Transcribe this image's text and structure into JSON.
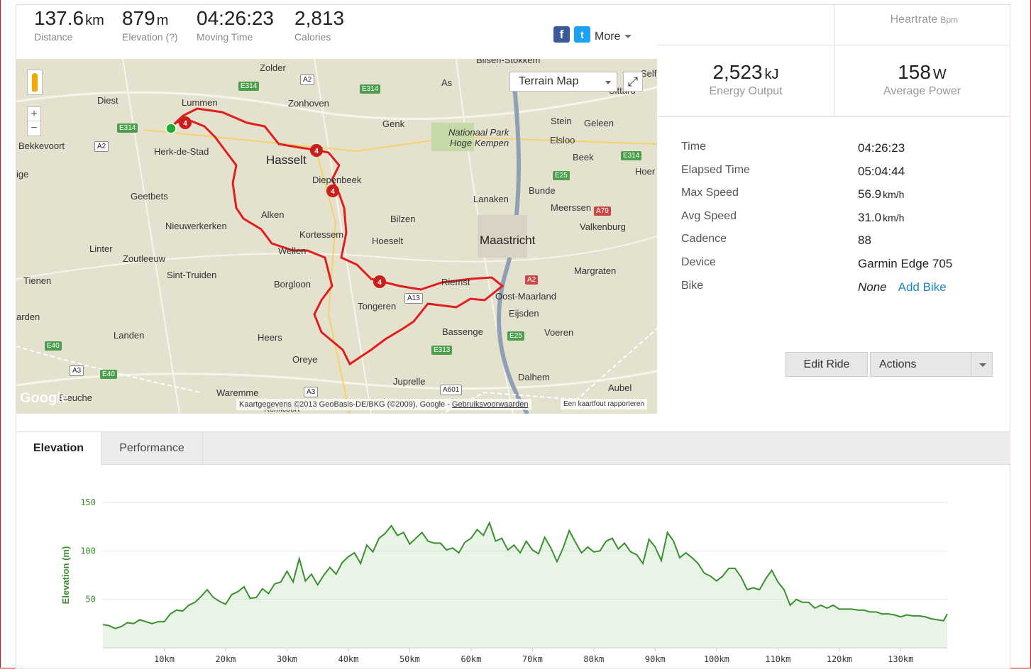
{
  "stats": [
    {
      "value": "137.6",
      "unit": "km",
      "label": "Distance"
    },
    {
      "value": "879",
      "unit": "m",
      "label": "Elevation (?)"
    },
    {
      "value": "04:26:23",
      "unit": "",
      "label": "Moving Time"
    },
    {
      "value": "2,813",
      "unit": "",
      "label": "Calories"
    }
  ],
  "social": {
    "fb_icon": "facebook-icon",
    "tw_icon": "twitter-icon",
    "more_label": "More"
  },
  "map": {
    "type_label": "Terrain Map",
    "attribution": "Kaartgegevens ©2013 GeoBasis-DE/BKG (©2009), Google - ",
    "terms_link": "Gebruiksvoorwaarden",
    "report_link": "Een kaartfout rapporteren",
    "logo": "Google",
    "places": [
      {
        "name": "Zolder"
      },
      {
        "name": "Diest"
      },
      {
        "name": "Lummen"
      },
      {
        "name": "Zonhoven"
      },
      {
        "name": "As"
      },
      {
        "name": "Genk"
      },
      {
        "name": "Bekkevoort"
      },
      {
        "name": "Herk-de-Stad"
      },
      {
        "name": "Hasselt",
        "big": true
      },
      {
        "name": "Nationaal Park"
      },
      {
        "name": "Hoge Kempen"
      },
      {
        "name": "Stein"
      },
      {
        "name": "Geleen"
      },
      {
        "name": "Elsloo"
      },
      {
        "name": "Beek"
      },
      {
        "name": "Diepenbeek"
      },
      {
        "name": "Geetbets"
      },
      {
        "name": "Lanaken"
      },
      {
        "name": "Bunde"
      },
      {
        "name": "Meerssen"
      },
      {
        "name": "Alken"
      },
      {
        "name": "Bilzen"
      },
      {
        "name": "Nieuwerkerken"
      },
      {
        "name": "Valkenburg"
      },
      {
        "name": "Kortessem"
      },
      {
        "name": "Hoeselt"
      },
      {
        "name": "Maastricht",
        "big": true
      },
      {
        "name": "Linter"
      },
      {
        "name": "Zoutleeuw"
      },
      {
        "name": "Wellen"
      },
      {
        "name": "Sint-Truiden"
      },
      {
        "name": "Margraten"
      },
      {
        "name": "Tienen"
      },
      {
        "name": "Borgloon"
      },
      {
        "name": "Riemst"
      },
      {
        "name": "Oost-Maarland"
      },
      {
        "name": "Tongeren"
      },
      {
        "name": "Eijsden"
      },
      {
        "name": "Landen"
      },
      {
        "name": "Heers"
      },
      {
        "name": "Bassenge"
      },
      {
        "name": "Voeren"
      },
      {
        "name": "Oreye"
      },
      {
        "name": "Dalhem"
      },
      {
        "name": "Juprelle"
      },
      {
        "name": "Aubel"
      },
      {
        "name": "Waremme"
      },
      {
        "name": "Remicourt"
      },
      {
        "name": "Hoer"
      },
      {
        "name": "ige"
      },
      {
        "name": "arden"
      },
      {
        "name": "Bieuche"
      },
      {
        "name": "Bilsen-Stokkem"
      },
      {
        "name": "Selfl"
      },
      {
        "name": "Sittard"
      }
    ],
    "roads": [
      "E314",
      "A2",
      "E314",
      "E314",
      "A2",
      "E314",
      "E25",
      "A79",
      "A13",
      "A2",
      "E25",
      "E313",
      "E40",
      "A3",
      "E40",
      "A3",
      "A601"
    ],
    "route_markers": [
      "4",
      "4",
      "4",
      "4"
    ]
  },
  "right_panel": {
    "heartrate_label": "Heartrate",
    "heartrate_unit": "Bpm",
    "energy": {
      "value": "2,523",
      "unit": "kJ",
      "label": "Energy Output"
    },
    "power": {
      "value": "158",
      "unit": "W",
      "label": "Average Power"
    },
    "details": [
      {
        "key": "Time",
        "value": "04:26:23",
        "unit": ""
      },
      {
        "key": "Elapsed Time",
        "value": "05:04:44",
        "unit": ""
      },
      {
        "key": "Max Speed",
        "value": "56.9",
        "unit": "km/h"
      },
      {
        "key": "Avg Speed",
        "value": "31.0",
        "unit": "km/h"
      },
      {
        "key": "Cadence",
        "value": "88",
        "unit": ""
      },
      {
        "key": "Device",
        "value": "Garmin Edge 705",
        "unit": ""
      }
    ],
    "bike": {
      "key": "Bike",
      "value": "None",
      "link": "Add Bike"
    },
    "edit_button": "Edit Ride",
    "actions_button": "Actions"
  },
  "tabs": [
    {
      "label": "Elevation",
      "active": true
    },
    {
      "label": "Performance",
      "active": false
    }
  ],
  "chart_data": {
    "type": "area",
    "ylabel": "Elevation (m)",
    "xlabel": "",
    "ylim": [
      0,
      150
    ],
    "yticks": [
      50,
      100,
      150
    ],
    "xlim": [
      0,
      137.6
    ],
    "xticks": [
      "10km",
      "20km",
      "30km",
      "40km",
      "50km",
      "60km",
      "70km",
      "80km",
      "90km",
      "100km",
      "110km",
      "120km",
      "130km"
    ],
    "xtick_values": [
      10,
      20,
      30,
      40,
      50,
      60,
      70,
      80,
      90,
      100,
      110,
      120,
      130
    ],
    "line_color": "#3a8f2e",
    "fill_color": "#cde6c8",
    "grid": true,
    "series": [
      {
        "x": [
          0,
          1,
          2,
          3,
          4,
          5,
          6,
          7,
          8,
          9,
          10,
          11,
          12,
          13,
          14,
          15,
          16,
          17,
          18,
          19,
          20,
          21,
          22,
          23,
          24,
          25,
          26,
          27,
          28,
          29,
          30,
          31,
          32,
          33,
          34,
          35,
          36,
          37,
          38,
          39,
          40,
          41,
          42,
          43,
          44,
          45,
          46,
          47,
          48,
          49,
          50,
          51,
          52,
          53,
          54,
          55,
          56,
          57,
          58,
          59,
          60,
          61,
          62,
          63,
          64,
          65,
          66,
          67,
          68,
          69,
          70,
          71,
          72,
          73,
          74,
          75,
          76,
          77,
          78,
          79,
          80,
          81,
          82,
          83,
          84,
          85,
          86,
          87,
          88,
          89,
          90,
          91,
          92,
          93,
          94,
          95,
          96,
          97,
          98,
          99,
          100,
          101,
          102,
          103,
          104,
          105,
          106,
          107,
          108,
          109,
          110,
          111,
          112,
          113,
          114,
          115,
          116,
          117,
          118,
          119,
          120,
          121,
          122,
          123,
          124,
          125,
          126,
          127,
          128,
          129,
          130,
          131,
          132,
          133,
          134,
          135,
          136,
          137,
          137.6
        ],
        "y": [
          24,
          23,
          20,
          22,
          26,
          25,
          29,
          27,
          25,
          27,
          27,
          35,
          39,
          38,
          44,
          47,
          53,
          60,
          52,
          48,
          45,
          55,
          58,
          63,
          51,
          52,
          61,
          56,
          66,
          68,
          79,
          68,
          92,
          69,
          76,
          65,
          75,
          83,
          76,
          88,
          94,
          98,
          87,
          106,
          99,
          113,
          118,
          126,
          116,
          119,
          107,
          113,
          119,
          110,
          108,
          108,
          101,
          103,
          98,
          109,
          113,
          122,
          116,
          129,
          110,
          113,
          101,
          106,
          98,
          110,
          101,
          97,
          114,
          103,
          89,
          103,
          121,
          109,
          98,
          104,
          99,
          100,
          110,
          113,
          102,
          108,
          99,
          96,
          87,
          112,
          104,
          90,
          119,
          110,
          93,
          98,
          93,
          87,
          77,
          74,
          69,
          74,
          82,
          82,
          73,
          60,
          62,
          60,
          71,
          80,
          68,
          60,
          44,
          50,
          47,
          47,
          41,
          44,
          41,
          44,
          40,
          40,
          40,
          39,
          39,
          37,
          37,
          35,
          35,
          34,
          32,
          34,
          33,
          33,
          32,
          30,
          29,
          28,
          35
        ]
      }
    ]
  }
}
